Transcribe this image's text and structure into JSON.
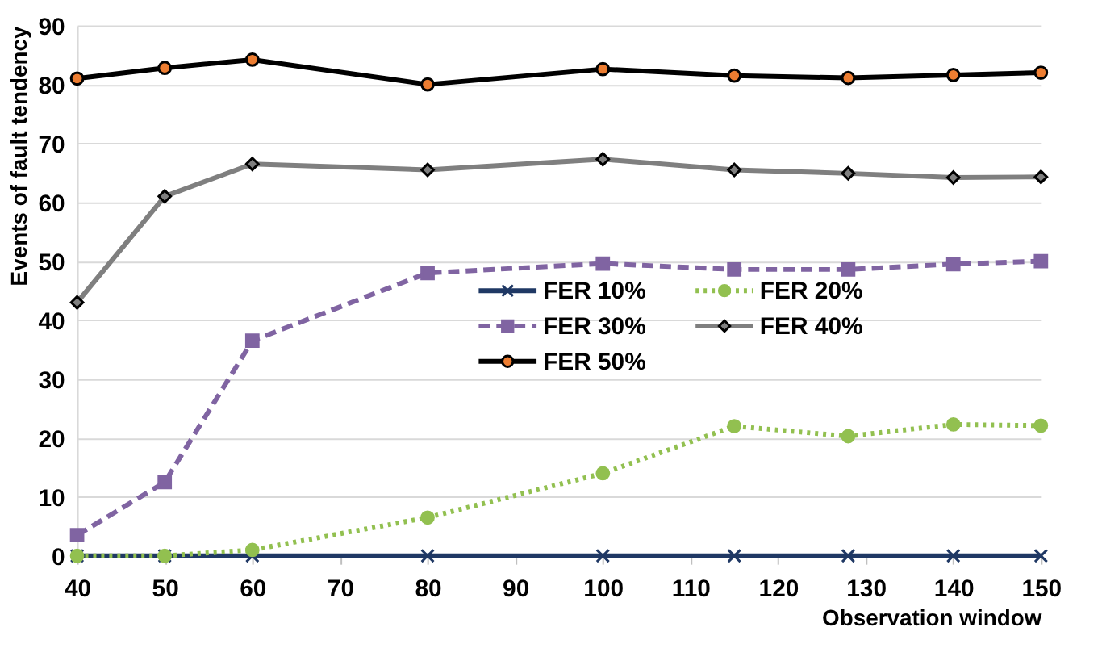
{
  "chart_data": {
    "type": "line",
    "xlabel": "Observation window",
    "ylabel": "Events of fault tendency",
    "x": [
      40,
      50,
      60,
      80,
      100,
      115,
      128,
      140,
      150
    ],
    "xlim": [
      40,
      150
    ],
    "xticks": [
      40,
      50,
      60,
      70,
      80,
      90,
      100,
      110,
      120,
      130,
      140,
      150
    ],
    "ylim": [
      0,
      90
    ],
    "yticks": [
      0,
      10,
      20,
      30,
      40,
      50,
      60,
      70,
      80,
      90
    ],
    "grid": "y",
    "legend": "center",
    "series": [
      {
        "name": "FER 10%",
        "color": "#1f3864",
        "marker": "cross",
        "line_style": "solid",
        "values": [
          0,
          0,
          0,
          0,
          0,
          0,
          0,
          0,
          0
        ]
      },
      {
        "name": "FER 20%",
        "color": "#92c050",
        "marker": "circle",
        "line_style": "dotted",
        "values": [
          0,
          0,
          1,
          6.5,
          14,
          22,
          20.3,
          22.3,
          22.1
        ]
      },
      {
        "name": "FER 30%",
        "color": "#8064a2",
        "marker": "square",
        "line_style": "dashed",
        "values": [
          3.5,
          12.5,
          36.5,
          48,
          49.6,
          48.6,
          48.6,
          49.5,
          50
        ]
      },
      {
        "name": "FER 40%",
        "color": "#7f7f7f",
        "marker": "diamond",
        "line_style": "solid",
        "values": [
          43,
          61,
          66.5,
          65.5,
          67.3,
          65.5,
          64.9,
          64.2,
          64.3
        ]
      },
      {
        "name": "FER 50%",
        "color": "#000000",
        "marker": "circle",
        "line_style": "solid",
        "colors": [
          "#ed7d31",
          "#ed7d31",
          "#ed7d31",
          "#ed7d31",
          "#ed7d31",
          "#ed7d31",
          "#ed7d31",
          "#ed7d31",
          "#ed7d31"
        ],
        "values": [
          81,
          82.8,
          84.2,
          80,
          82.6,
          81.5,
          81.1,
          81.6,
          82
        ]
      }
    ]
  }
}
